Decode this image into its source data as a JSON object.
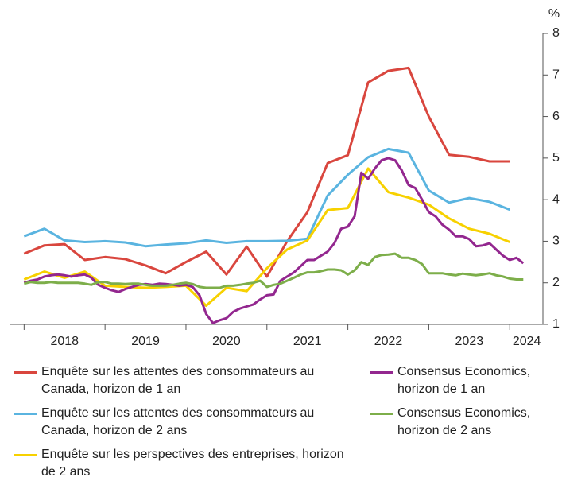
{
  "chart_data": {
    "type": "line",
    "y_unit": "%",
    "xlim": [
      2017.82,
      2024.41
    ],
    "xticks": [
      {
        "value": 2018.5,
        "label": "2018"
      },
      {
        "value": 2019.5,
        "label": "2019"
      },
      {
        "value": 2020.5,
        "label": "2020"
      },
      {
        "value": 2021.5,
        "label": "2021"
      },
      {
        "value": 2022.5,
        "label": "2022"
      },
      {
        "value": 2023.5,
        "label": "2023"
      },
      {
        "value": 2024.21,
        "label": "2024"
      }
    ],
    "xtick_marks": [
      2018,
      2019,
      2020,
      2021,
      2022,
      2023,
      2024
    ],
    "ylim": [
      1,
      8
    ],
    "yticks": [
      1,
      2,
      3,
      4,
      5,
      6,
      7,
      8
    ],
    "series": [
      {
        "name": "Enquête sur les attentes des consommateurs au Canada, horizon de 1 an",
        "color": "#d9463e",
        "x": [
          2018,
          2018.25,
          2018.5,
          2018.75,
          2019,
          2019.25,
          2019.5,
          2019.75,
          2020,
          2020.25,
          2020.5,
          2020.75,
          2021,
          2021.25,
          2021.5,
          2021.75,
          2022,
          2022.25,
          2022.5,
          2022.75,
          2023,
          2023.25,
          2023.5,
          2023.75,
          2024
        ],
        "values": [
          2.7,
          2.9,
          2.93,
          2.55,
          2.62,
          2.57,
          2.42,
          2.23,
          2.5,
          2.75,
          2.2,
          2.87,
          2.15,
          3.0,
          3.7,
          4.88,
          5.07,
          6.82,
          7.1,
          7.17,
          6.0,
          5.08,
          5.03,
          4.92,
          4.92
        ]
      },
      {
        "name": "Enquête sur les attentes des consommateurs au Canada, horizon de 2 ans",
        "color": "#5ab4e0",
        "x": [
          2018,
          2018.25,
          2018.5,
          2018.75,
          2019,
          2019.25,
          2019.5,
          2019.75,
          2020,
          2020.25,
          2020.5,
          2020.75,
          2021,
          2021.25,
          2021.5,
          2021.75,
          2022,
          2022.25,
          2022.5,
          2022.75,
          2023,
          2023.25,
          2023.5,
          2023.75,
          2024
        ],
        "values": [
          3.12,
          3.3,
          3.02,
          2.98,
          3.0,
          2.97,
          2.88,
          2.92,
          2.95,
          3.02,
          2.96,
          3.0,
          3.0,
          3.01,
          3.06,
          4.1,
          4.6,
          5.02,
          5.22,
          5.13,
          4.22,
          3.93,
          4.04,
          3.95,
          3.76
        ]
      },
      {
        "name": "Enquête sur les perspectives des entreprises, horizon de 2 ans",
        "color": "#f7d100",
        "x": [
          2018,
          2018.25,
          2018.5,
          2018.75,
          2019,
          2019.25,
          2019.5,
          2019.75,
          2020,
          2020.25,
          2020.5,
          2020.75,
          2021,
          2021.25,
          2021.5,
          2021.75,
          2022,
          2022.25,
          2022.5,
          2022.75,
          2023,
          2023.25,
          2023.5,
          2023.75,
          2024
        ],
        "values": [
          2.08,
          2.27,
          2.12,
          2.27,
          1.93,
          1.9,
          1.88,
          1.9,
          1.93,
          1.45,
          1.88,
          1.8,
          2.35,
          2.8,
          3.02,
          3.75,
          3.8,
          4.75,
          4.18,
          4.05,
          3.88,
          3.55,
          3.3,
          3.18,
          2.98
        ]
      },
      {
        "name": "Consensus Economics, horizon de 1 an",
        "color": "#93278f",
        "x": [
          2018,
          2018.083,
          2018.167,
          2018.25,
          2018.333,
          2018.417,
          2018.5,
          2018.583,
          2018.667,
          2018.75,
          2018.833,
          2018.917,
          2019,
          2019.083,
          2019.167,
          2019.25,
          2019.333,
          2019.417,
          2019.5,
          2019.583,
          2019.667,
          2019.75,
          2019.833,
          2019.917,
          2020,
          2020.083,
          2020.167,
          2020.25,
          2020.333,
          2020.417,
          2020.5,
          2020.583,
          2020.667,
          2020.75,
          2020.833,
          2020.917,
          2021,
          2021.083,
          2021.167,
          2021.25,
          2021.333,
          2021.417,
          2021.5,
          2021.583,
          2021.667,
          2021.75,
          2021.833,
          2021.917,
          2022,
          2022.083,
          2022.167,
          2022.25,
          2022.333,
          2022.417,
          2022.5,
          2022.583,
          2022.667,
          2022.75,
          2022.833,
          2022.917,
          2023,
          2023.083,
          2023.167,
          2023.25,
          2023.333,
          2023.417,
          2023.5,
          2023.583,
          2023.667,
          2023.75,
          2023.833,
          2023.917,
          2024,
          2024.083,
          2024.167
        ],
        "values": [
          2.0,
          2.05,
          2.08,
          2.15,
          2.18,
          2.2,
          2.18,
          2.15,
          2.18,
          2.2,
          2.12,
          1.95,
          1.88,
          1.82,
          1.78,
          1.85,
          1.9,
          1.95,
          1.97,
          1.95,
          1.98,
          1.97,
          1.95,
          1.93,
          1.95,
          1.9,
          1.7,
          1.25,
          1.03,
          1.1,
          1.15,
          1.3,
          1.38,
          1.43,
          1.48,
          1.6,
          1.7,
          1.72,
          2.05,
          2.15,
          2.25,
          2.4,
          2.55,
          2.55,
          2.65,
          2.75,
          2.95,
          3.3,
          3.35,
          3.6,
          4.65,
          4.5,
          4.75,
          4.95,
          5.0,
          4.95,
          4.7,
          4.35,
          4.28,
          4.0,
          3.7,
          3.6,
          3.4,
          3.28,
          3.12,
          3.12,
          3.05,
          2.88,
          2.9,
          2.95,
          2.8,
          2.65,
          2.55,
          2.6,
          2.47
        ]
      },
      {
        "name": "Consensus Economics, horizon de 2 ans",
        "color": "#7dae4a",
        "x": [
          2018,
          2018.083,
          2018.167,
          2018.25,
          2018.333,
          2018.417,
          2018.5,
          2018.583,
          2018.667,
          2018.75,
          2018.833,
          2018.917,
          2019,
          2019.083,
          2019.167,
          2019.25,
          2019.333,
          2019.417,
          2019.5,
          2019.583,
          2019.667,
          2019.75,
          2019.833,
          2019.917,
          2020,
          2020.083,
          2020.167,
          2020.25,
          2020.333,
          2020.417,
          2020.5,
          2020.583,
          2020.667,
          2020.75,
          2020.833,
          2020.917,
          2021,
          2021.083,
          2021.167,
          2021.25,
          2021.333,
          2021.417,
          2021.5,
          2021.583,
          2021.667,
          2021.75,
          2021.833,
          2021.917,
          2022,
          2022.083,
          2022.167,
          2022.25,
          2022.333,
          2022.417,
          2022.5,
          2022.583,
          2022.667,
          2022.75,
          2022.833,
          2022.917,
          2023,
          2023.083,
          2023.167,
          2023.25,
          2023.333,
          2023.417,
          2023.5,
          2023.583,
          2023.667,
          2023.75,
          2023.833,
          2023.917,
          2024,
          2024.083,
          2024.167
        ],
        "values": [
          1.98,
          2.02,
          2.0,
          2.0,
          2.02,
          2.0,
          2.0,
          2.0,
          2.0,
          1.98,
          1.95,
          2.02,
          2.02,
          1.98,
          1.98,
          1.97,
          1.98,
          1.98,
          1.95,
          1.93,
          1.93,
          1.93,
          1.95,
          1.98,
          2.0,
          1.97,
          1.9,
          1.88,
          1.88,
          1.88,
          1.93,
          1.93,
          1.95,
          1.98,
          2.0,
          2.05,
          1.9,
          1.95,
          1.98,
          2.05,
          2.12,
          2.2,
          2.25,
          2.25,
          2.28,
          2.32,
          2.32,
          2.3,
          2.2,
          2.3,
          2.5,
          2.43,
          2.62,
          2.67,
          2.68,
          2.7,
          2.6,
          2.6,
          2.55,
          2.45,
          2.23,
          2.23,
          2.23,
          2.2,
          2.18,
          2.22,
          2.2,
          2.18,
          2.2,
          2.23,
          2.18,
          2.15,
          2.1,
          2.08,
          2.08
        ]
      }
    ]
  }
}
